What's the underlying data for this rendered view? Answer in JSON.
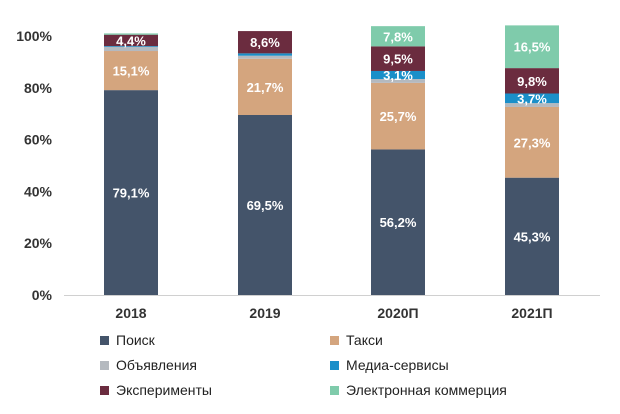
{
  "chart_data": {
    "type": "bar",
    "stacked": true,
    "categories": [
      "2018",
      "2019",
      "2020П",
      "2021П"
    ],
    "ylim": [
      0,
      100
    ],
    "yticks": [
      "0%",
      "20%",
      "40%",
      "60%",
      "80%",
      "100%"
    ],
    "grid": false,
    "legend_position": "bottom",
    "series": [
      {
        "name": "Поиск",
        "color": "#44546a",
        "values": [
          79.1,
          69.5,
          56.2,
          45.3
        ],
        "labels": [
          "79,1%",
          "69,5%",
          "56,2%",
          "45,3%"
        ],
        "label_color": "#ffffff"
      },
      {
        "name": "Такси",
        "color": "#d4a57e",
        "values": [
          15.1,
          21.7,
          25.7,
          27.3
        ],
        "labels": [
          "15,1%",
          "21,7%",
          "25,7%",
          "27,3%"
        ],
        "label_color": "#ffffff"
      },
      {
        "name": "Объявления",
        "color": "#b4b9bf",
        "values": [
          1.6,
          1.2,
          1.5,
          1.5
        ],
        "labels": [
          "",
          "",
          "",
          ""
        ],
        "label_color": "#ffffff"
      },
      {
        "name": "Медиа-сервисы",
        "color": "#1a8fc9",
        "values": [
          0.3,
          0.9,
          3.1,
          3.7
        ],
        "labels": [
          "",
          "",
          "3,1%",
          "3,7%"
        ],
        "label_color": "#ffffff"
      },
      {
        "name": "Эксперименты",
        "color": "#6b2c3f",
        "values": [
          4.4,
          8.6,
          9.5,
          9.8
        ],
        "labels": [
          "4,4%",
          "8,6%",
          "9,5%",
          "9,8%"
        ],
        "label_color": "#ffffff"
      },
      {
        "name": "Электронная коммерция",
        "color": "#7fcbab",
        "values": [
          0.5,
          0.0,
          7.8,
          16.5
        ],
        "labels": [
          "",
          "",
          "7,8%",
          "16,5%"
        ],
        "label_color": "#ffffff"
      }
    ]
  }
}
